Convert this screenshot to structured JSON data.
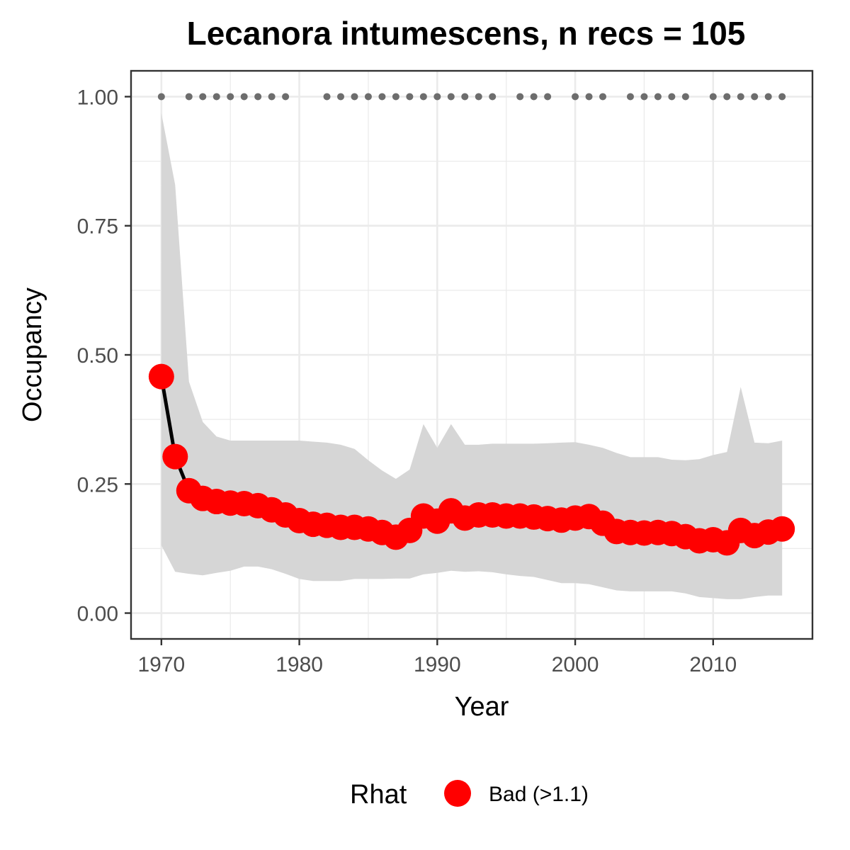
{
  "chart_data": {
    "type": "line",
    "title": "Lecanora intumescens, n recs = 105",
    "xlabel": "Year",
    "ylabel": "Occupancy",
    "xlim": [
      1967.8,
      2017.2
    ],
    "ylim": [
      -0.05,
      1.05
    ],
    "x_ticks": [
      1970,
      1980,
      1990,
      2000,
      2010
    ],
    "x_tick_labels": [
      "1970",
      "1980",
      "1990",
      "2000",
      "2010"
    ],
    "y_ticks": [
      0,
      0.25,
      0.5,
      0.75,
      1.0
    ],
    "y_tick_labels": [
      "0.00",
      "0.25",
      "0.50",
      "0.75",
      "1.00"
    ],
    "grid": true,
    "years": [
      1970,
      1971,
      1972,
      1973,
      1974,
      1975,
      1976,
      1977,
      1978,
      1979,
      1980,
      1981,
      1982,
      1983,
      1984,
      1985,
      1986,
      1987,
      1988,
      1989,
      1990,
      1991,
      1992,
      1993,
      1994,
      1995,
      1996,
      1997,
      1998,
      1999,
      2000,
      2001,
      2002,
      2003,
      2004,
      2005,
      2006,
      2007,
      2008,
      2009,
      2010,
      2011,
      2012,
      2013,
      2014,
      2015
    ],
    "occupancy": [
      0.458,
      0.303,
      0.237,
      0.222,
      0.216,
      0.213,
      0.212,
      0.208,
      0.2,
      0.19,
      0.179,
      0.172,
      0.17,
      0.166,
      0.166,
      0.163,
      0.156,
      0.147,
      0.16,
      0.188,
      0.178,
      0.198,
      0.184,
      0.19,
      0.19,
      0.188,
      0.188,
      0.186,
      0.183,
      0.18,
      0.184,
      0.187,
      0.174,
      0.158,
      0.156,
      0.155,
      0.156,
      0.154,
      0.148,
      0.14,
      0.142,
      0.136,
      0.16,
      0.15,
      0.157,
      0.163
    ],
    "upper_ci": [
      0.968,
      0.829,
      0.448,
      0.37,
      0.342,
      0.334,
      0.334,
      0.334,
      0.334,
      0.334,
      0.334,
      0.332,
      0.33,
      0.326,
      0.318,
      0.296,
      0.276,
      0.26,
      0.278,
      0.366,
      0.32,
      0.366,
      0.326,
      0.326,
      0.328,
      0.328,
      0.328,
      0.328,
      0.329,
      0.33,
      0.331,
      0.326,
      0.32,
      0.31,
      0.302,
      0.302,
      0.302,
      0.297,
      0.296,
      0.298,
      0.306,
      0.312,
      0.438,
      0.33,
      0.329,
      0.334
    ],
    "lower_ci": [
      0.131,
      0.08,
      0.076,
      0.073,
      0.078,
      0.082,
      0.09,
      0.09,
      0.085,
      0.076,
      0.066,
      0.062,
      0.062,
      0.062,
      0.066,
      0.066,
      0.066,
      0.067,
      0.067,
      0.075,
      0.078,
      0.082,
      0.08,
      0.081,
      0.079,
      0.075,
      0.072,
      0.07,
      0.064,
      0.058,
      0.058,
      0.056,
      0.05,
      0.044,
      0.042,
      0.042,
      0.042,
      0.042,
      0.038,
      0.031,
      0.029,
      0.027,
      0.027,
      0.031,
      0.034,
      0.034
    ],
    "record_years": [
      1970,
      1972,
      1973,
      1974,
      1975,
      1976,
      1977,
      1978,
      1979,
      1982,
      1983,
      1984,
      1985,
      1986,
      1987,
      1988,
      1989,
      1990,
      1991,
      1992,
      1993,
      1994,
      1996,
      1997,
      1998,
      2000,
      2001,
      2002,
      2004,
      2005,
      2006,
      2007,
      2008,
      2010,
      2011,
      2012,
      2013,
      2014,
      2015
    ],
    "record_y": 1.0,
    "legend": {
      "title": "Rhat",
      "label": "Bad (>1.1)",
      "placement": "bottom"
    },
    "colors": {
      "point": "#ff0000",
      "line": "#000000",
      "ribbon": "#d6d6d6",
      "record_dot": "#6d6d6d",
      "grid_major": "#ebebeb",
      "panel_border": "#333333"
    }
  }
}
